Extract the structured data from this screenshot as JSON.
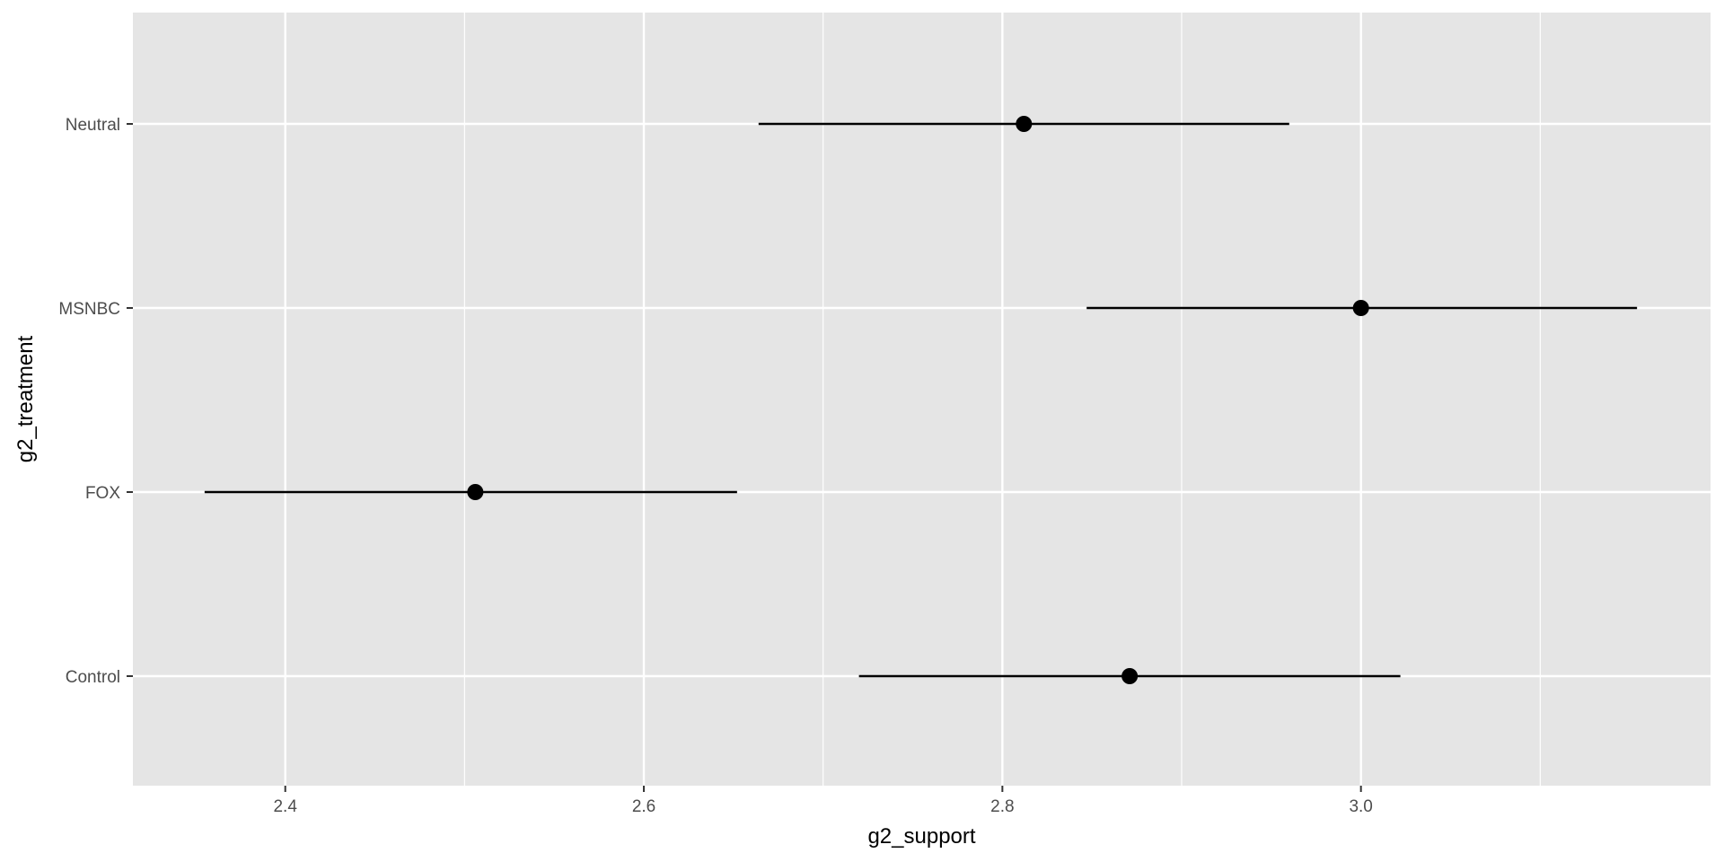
{
  "chart_data": {
    "type": "pointrange",
    "xlabel": "g2_support",
    "ylabel": "g2_treatment",
    "categories": [
      "Control",
      "FOX",
      "MSNBC",
      "Neutral"
    ],
    "points": [
      {
        "label": "Control",
        "x": 2.871,
        "xmin": 2.72,
        "xmax": 3.022
      },
      {
        "label": "FOX",
        "x": 2.506,
        "xmin": 2.355,
        "xmax": 2.652
      },
      {
        "label": "MSNBC",
        "x": 3.0,
        "xmin": 2.847,
        "xmax": 3.154
      },
      {
        "label": "Neutral",
        "x": 2.812,
        "xmin": 2.664,
        "xmax": 2.96
      }
    ],
    "xlim": [
      2.315,
      3.195
    ],
    "x_major_ticks": [
      2.4,
      2.6,
      2.8,
      3.0
    ],
    "x_tick_labels": [
      "2.4",
      "2.6",
      "2.8",
      "3.0"
    ],
    "x_minor_ticks": [
      2.5,
      2.7,
      2.9,
      3.1
    ],
    "grid": true,
    "colors": {
      "panel": "#e5e5e5",
      "grid": "#ffffff",
      "mark": "#000000",
      "tick_text": "#4d4d4d",
      "axis_ticks": "#333333"
    }
  }
}
